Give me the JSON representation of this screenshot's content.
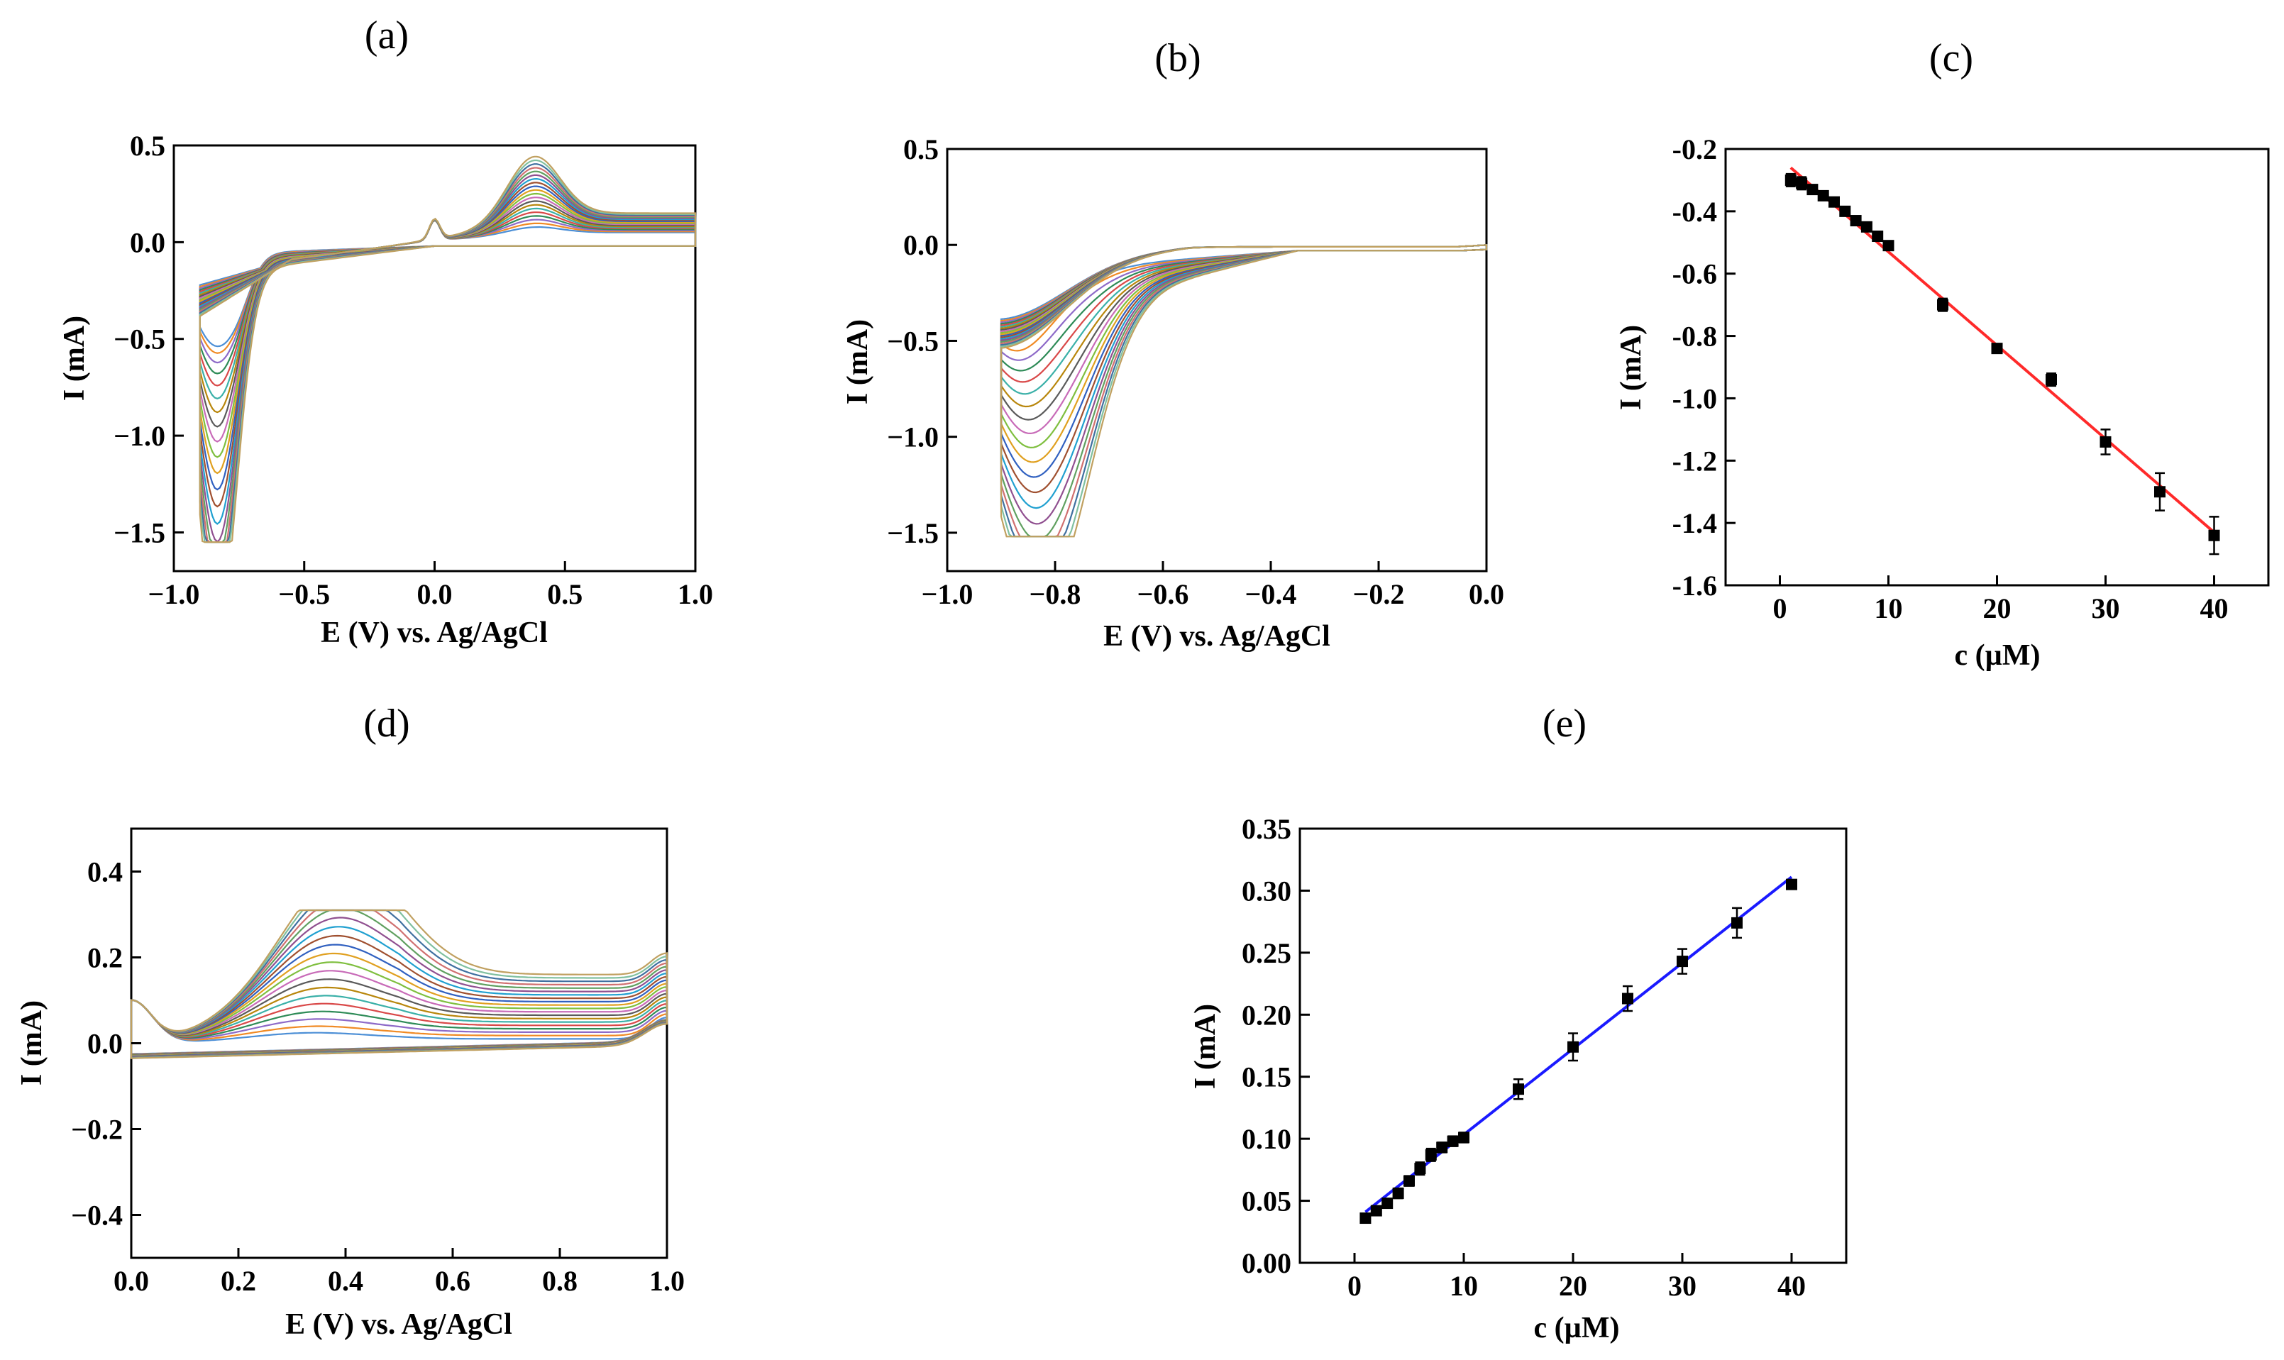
{
  "chart_data": [
    {
      "id": "a",
      "type": "line",
      "panel_label": "(a)",
      "xlabel": "E (V) vs. Ag/AgCl",
      "ylabel": "I (mA)",
      "xlim": [
        -1.0,
        1.0
      ],
      "ylim": [
        -1.7,
        0.5
      ],
      "xticks": [
        -1.0,
        -0.5,
        0.0,
        0.5,
        1.0
      ],
      "xtick_labels": [
        "−1.0",
        "−0.5",
        "0.0",
        "0.5",
        "1.0"
      ],
      "yticks": [
        0.5,
        0.0,
        -0.5,
        -1.0,
        -1.5
      ],
      "ytick_labels": [
        "0.5",
        "0.0",
        "−0.5",
        "−1.0",
        "−1.5"
      ],
      "note": "Cyclic voltammograms, one curve per concentration",
      "series_count": 20
    },
    {
      "id": "b",
      "type": "line",
      "panel_label": "(b)",
      "xlabel": "E (V) vs. Ag/AgCl",
      "ylabel": "I (mA)",
      "xlim": [
        -1.0,
        0.0
      ],
      "ylim": [
        -1.7,
        0.5
      ],
      "xticks": [
        -1.0,
        -0.8,
        -0.6,
        -0.4,
        -0.2,
        0.0
      ],
      "xtick_labels": [
        "−1.0",
        "−0.8",
        "−0.6",
        "−0.4",
        "−0.2",
        "0.0"
      ],
      "yticks": [
        0.5,
        0.0,
        -0.5,
        -1.0,
        -1.5
      ],
      "ytick_labels": [
        "0.5",
        "0.0",
        "−0.5",
        "−1.0",
        "−1.5"
      ],
      "series_count": 20
    },
    {
      "id": "c",
      "type": "scatter",
      "panel_label": "(c)",
      "xlabel": "c (µM)",
      "ylabel": "I (mA)",
      "xlim": [
        -5,
        45
      ],
      "ylim": [
        -1.6,
        -0.2
      ],
      "xticks": [
        0,
        10,
        20,
        30,
        40
      ],
      "xtick_labels": [
        "0",
        "10",
        "20",
        "30",
        "40"
      ],
      "yticks": [
        -0.2,
        -0.4,
        -0.6,
        -0.8,
        -1.0,
        -1.2,
        -1.4,
        -1.6
      ],
      "ytick_labels": [
        "-0.2",
        "-0.4",
        "-0.6",
        "-0.8",
        "-1.0",
        "-1.2",
        "-1.4",
        "-1.6"
      ],
      "x": [
        1,
        2,
        3,
        4,
        5,
        6,
        7,
        8,
        9,
        10,
        15,
        20,
        25,
        30,
        35,
        40
      ],
      "y": [
        -0.3,
        -0.31,
        -0.33,
        -0.35,
        -0.37,
        -0.4,
        -0.43,
        -0.45,
        -0.48,
        -0.51,
        -0.7,
        -0.84,
        -0.94,
        -1.14,
        -1.3,
        -1.44
      ],
      "err": [
        0.02,
        0.02,
        0.01,
        0.01,
        0.01,
        0.01,
        0.01,
        0.01,
        0.01,
        0.01,
        0.02,
        0.01,
        0.02,
        0.04,
        0.06,
        0.06
      ],
      "fit": {
        "x": [
          1,
          40
        ],
        "y": [
          -0.26,
          -1.43
        ]
      },
      "fit_color": "#ff2a2a",
      "marker_color": "#000000"
    },
    {
      "id": "d",
      "type": "line",
      "panel_label": "(d)",
      "xlabel": "E (V) vs. Ag/AgCl",
      "ylabel": "I (mA)",
      "xlim": [
        0.0,
        1.0
      ],
      "ylim": [
        -0.5,
        0.5
      ],
      "xticks": [
        0.0,
        0.2,
        0.4,
        0.6,
        0.8,
        1.0
      ],
      "xtick_labels": [
        "0.0",
        "0.2",
        "0.4",
        "0.6",
        "0.8",
        "1.0"
      ],
      "yticks": [
        0.4,
        0.2,
        0.0,
        -0.2,
        -0.4
      ],
      "ytick_labels": [
        "0.4",
        "0.2",
        "0.0",
        "−0.2",
        "−0.4"
      ],
      "series_count": 20
    },
    {
      "id": "e",
      "type": "scatter",
      "panel_label": "(e)",
      "xlabel": "c (µM)",
      "ylabel": "I (mA)",
      "xlim": [
        -5,
        45
      ],
      "ylim": [
        0.0,
        0.35
      ],
      "xticks": [
        0,
        10,
        20,
        30,
        40
      ],
      "xtick_labels": [
        "0",
        "10",
        "20",
        "30",
        "40"
      ],
      "yticks": [
        0.0,
        0.05,
        0.1,
        0.15,
        0.2,
        0.25,
        0.3,
        0.35
      ],
      "ytick_labels": [
        "0.00",
        "0.05",
        "0.10",
        "0.15",
        "0.20",
        "0.25",
        "0.30",
        "0.35"
      ],
      "x": [
        1,
        2,
        3,
        4,
        5,
        6,
        7,
        8,
        9,
        10,
        15,
        20,
        25,
        30,
        35,
        40
      ],
      "y": [
        0.036,
        0.042,
        0.048,
        0.056,
        0.066,
        0.076,
        0.087,
        0.093,
        0.098,
        0.101,
        0.14,
        0.174,
        0.213,
        0.243,
        0.274,
        0.305
      ],
      "err": [
        0.003,
        0.003,
        0.003,
        0.004,
        0.004,
        0.005,
        0.005,
        0.004,
        0.004,
        0.004,
        0.008,
        0.011,
        0.01,
        0.01,
        0.012,
        0.003
      ],
      "fit": {
        "x": [
          1,
          40
        ],
        "y": [
          0.041,
          0.311
        ]
      },
      "fit_color": "#1a1aff",
      "marker_color": "#000000"
    }
  ],
  "palette": [
    "#4c8fd6",
    "#f08a24",
    "#8e6ac8",
    "#2e8b57",
    "#d94848",
    "#3ab0a8",
    "#b8860b",
    "#5a5a5a",
    "#c86bb8",
    "#7fbf3f",
    "#e0a020",
    "#3060c0",
    "#a05030",
    "#20a0d0",
    "#905090",
    "#60a060",
    "#d07070",
    "#4070a0",
    "#80c0a0",
    "#c0a060"
  ]
}
